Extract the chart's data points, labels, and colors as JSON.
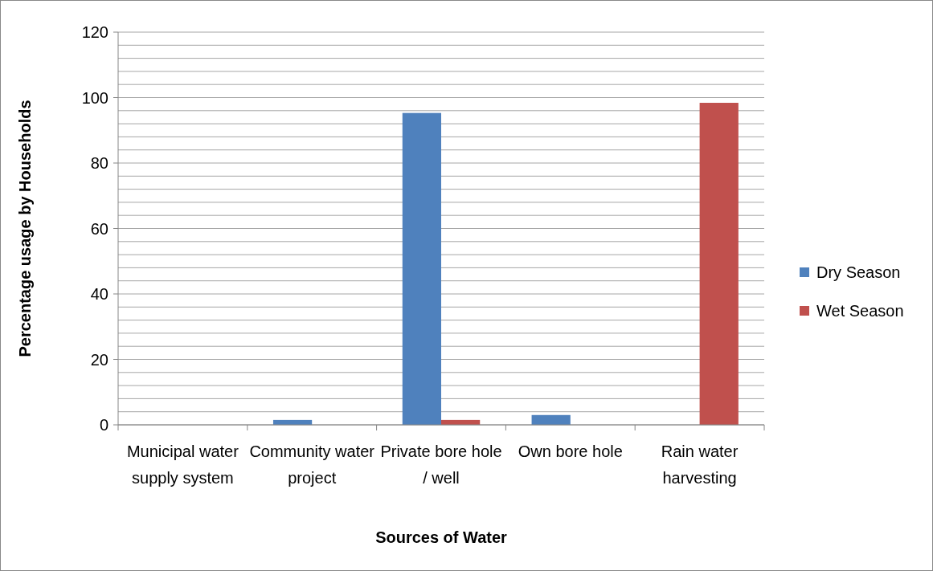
{
  "chart_data": {
    "type": "bar",
    "xlabel": "Sources of Water",
    "ylabel": "Percentage usage by Households",
    "categories": [
      "Municipal water supply system",
      "Community water project",
      "Private bore hole / well",
      "Own bore hole",
      "Rain water harvesting"
    ],
    "series": [
      {
        "name": "Dry Season",
        "color": "#4f81bd",
        "values": [
          0,
          1.5,
          95.3,
          3,
          0
        ]
      },
      {
        "name": "Wet Season",
        "color": "#c0504d",
        "values": [
          0,
          0,
          1.5,
          0,
          98.4
        ]
      }
    ],
    "ylim": [
      0,
      120
    ],
    "yticks": [
      0,
      {
        "value": 4,
        "label": null
      },
      {
        "value": 8,
        "label": null
      },
      {
        "value": 12,
        "label": null
      },
      {
        "value": 16,
        "label": null
      },
      20,
      {
        "value": 24,
        "label": null
      },
      {
        "value": 28,
        "label": null
      },
      {
        "value": 32,
        "label": null
      },
      {
        "value": 36,
        "label": null
      },
      40,
      {
        "value": 44,
        "label": null
      },
      {
        "value": 48,
        "label": null
      },
      {
        "value": 52,
        "label": null
      },
      {
        "value": 56,
        "label": null
      },
      60,
      {
        "value": 64,
        "label": null
      },
      {
        "value": 68,
        "label": null
      },
      {
        "value": 72,
        "label": null
      },
      {
        "value": 76,
        "label": null
      },
      80,
      {
        "value": 84,
        "label": null
      },
      {
        "value": 88,
        "label": null
      },
      {
        "value": 92,
        "label": null
      },
      {
        "value": 96,
        "label": null
      },
      100,
      {
        "value": 104,
        "label": null
      },
      {
        "value": 108,
        "label": null
      },
      {
        "value": 112,
        "label": null
      },
      {
        "value": 116,
        "label": null
      },
      120
    ],
    "grid": "y",
    "legend": "right"
  }
}
